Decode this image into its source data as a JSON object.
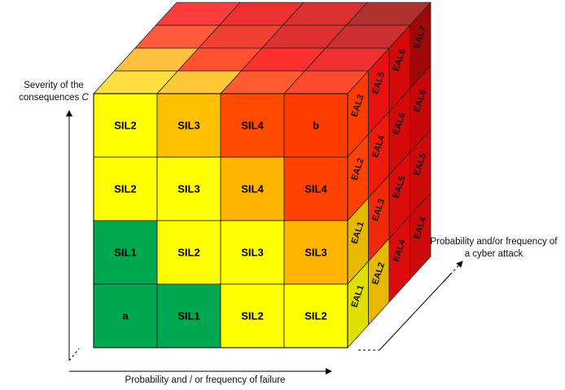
{
  "axes": {
    "severity": {
      "text": "Severity of the consequences",
      "symbol": "C"
    },
    "failure": "Probability and / or frequency of failure",
    "cyber": "Probability and/or frequency of a cyber attack"
  },
  "front_face": [
    [
      "SIL2",
      "SIL3",
      "SIL4",
      "b"
    ],
    [
      "SIL2",
      "SIL3",
      "SIL4",
      "SIL4"
    ],
    [
      "SIL1",
      "SIL2",
      "SIL3",
      "SIL3"
    ],
    [
      "a",
      "SIL1",
      "SIL2",
      "SIL2"
    ]
  ],
  "side_face": [
    [
      "EAL3",
      "EAL5",
      "EAL6",
      "EAL7"
    ],
    [
      "EAL2",
      "EAL4",
      "EAL6",
      "EAL6"
    ],
    [
      "EAL1",
      "EAL3",
      "EAL5",
      "EAL5"
    ],
    [
      "EAL1",
      "EAL2",
      "EAL4",
      "EAL4"
    ]
  ],
  "colors": {
    "front": [
      [
        "#ffff00",
        "#ffc000",
        "#ff4a00",
        "#ff3c00"
      ],
      [
        "#ffff00",
        "#ffff00",
        "#ffb400",
        "#ff4200"
      ],
      [
        "#00a850",
        "#ffff00",
        "#ffff00",
        "#ffb400"
      ],
      [
        "#00a850",
        "#00a850",
        "#ffff00",
        "#ffff00"
      ]
    ],
    "side": [
      [
        "#ff3c00",
        "#e81010",
        "#d40a0a",
        "#a00808"
      ],
      [
        "#ff4200",
        "#ee1a0a",
        "#d40a0a",
        "#c80808"
      ],
      [
        "#e6b800",
        "#ee2a0a",
        "#dd0c0c",
        "#cc0a0a"
      ],
      [
        "#e0e000",
        "#e6b800",
        "#dd0c0c",
        "#cc0a0a"
      ]
    ],
    "top": [
      [
        "#ff3c3c",
        "#ee3030",
        "#dd3030",
        "#b03030"
      ],
      [
        "#ff5a3c",
        "#f04034",
        "#dd3030",
        "#cc3030"
      ],
      [
        "#ffc040",
        "#ff5030",
        "#ff3030",
        "#ee3030"
      ],
      [
        "#ffe040",
        "#ffc838",
        "#ff5a30",
        "#ff4a30"
      ]
    ]
  }
}
